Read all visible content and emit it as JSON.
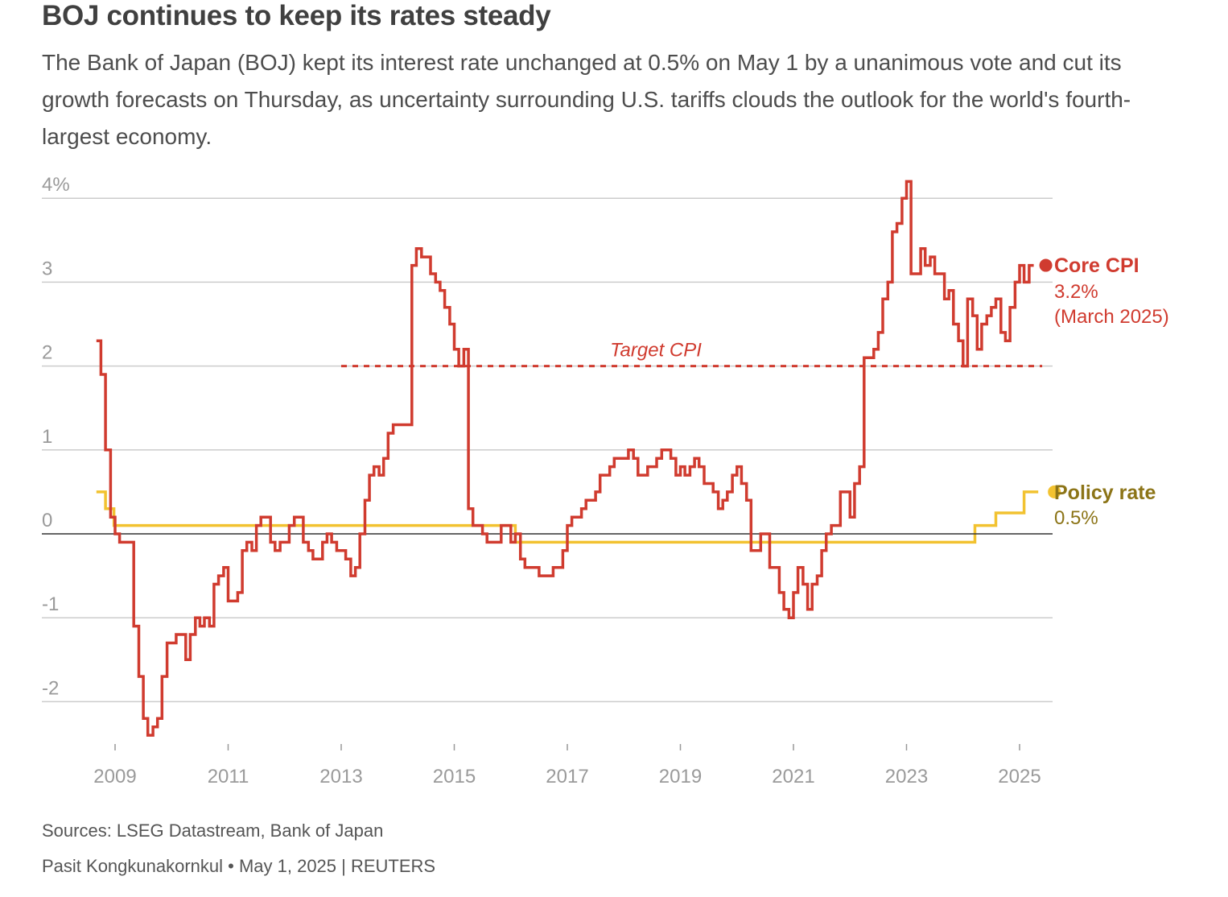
{
  "header": {
    "title": "BOJ continues to keep its rates steady",
    "subtitle": "The Bank of Japan (BOJ) kept its interest rate unchanged at 0.5% on May 1 by a unanimous vote and cut its growth forecasts on Thursday, as uncertainty surrounding U.S. tariffs clouds the outlook for the world's fourth-largest economy."
  },
  "footer": {
    "sources": "Sources: LSEG Datastream, Bank of Japan",
    "byline": "Pasit Kongkunakornkul • May 1, 2025 | REUTERS"
  },
  "colors": {
    "core_cpi": "#d03b2f",
    "policy_rate": "#f2c230",
    "policy_label": "#8c7417",
    "grid": "#cccccc",
    "zero_line": "#333333",
    "axis_text": "#9a9a9a"
  },
  "chart_data": {
    "type": "line",
    "step": true,
    "x_range": [
      2008.0,
      2025.6
    ],
    "ylim": [
      -2.55,
      4.2
    ],
    "y_ticks": [
      {
        "value": 4,
        "label": "4%"
      },
      {
        "value": 3,
        "label": "3"
      },
      {
        "value": 2,
        "label": "2"
      },
      {
        "value": 1,
        "label": "1"
      },
      {
        "value": 0,
        "label": "0"
      },
      {
        "value": -1,
        "label": "-1"
      },
      {
        "value": -2,
        "label": "-2"
      }
    ],
    "x_ticks": [
      {
        "value": 2009,
        "label": "2009"
      },
      {
        "value": 2011,
        "label": "2011"
      },
      {
        "value": 2013,
        "label": "2013"
      },
      {
        "value": 2015,
        "label": "2015"
      },
      {
        "value": 2017,
        "label": "2017"
      },
      {
        "value": 2019,
        "label": "2019"
      },
      {
        "value": 2021,
        "label": "2021"
      },
      {
        "value": 2023,
        "label": "2023"
      },
      {
        "value": 2025,
        "label": "2025"
      }
    ],
    "target_line": {
      "label": "Target CPI",
      "value": 2,
      "x_start": 2013.0,
      "x_end": 2025.4
    },
    "series": [
      {
        "name": "Core CPI",
        "end_value_label": "3.2%",
        "end_date_label": "(March 2025)",
        "points": [
          [
            2008.67,
            2.3
          ],
          [
            2008.75,
            1.9
          ],
          [
            2008.83,
            1.0
          ],
          [
            2008.92,
            0.2
          ],
          [
            2009.0,
            0.0
          ],
          [
            2009.08,
            -0.1
          ],
          [
            2009.17,
            -0.1
          ],
          [
            2009.25,
            -0.1
          ],
          [
            2009.33,
            -1.1
          ],
          [
            2009.42,
            -1.7
          ],
          [
            2009.5,
            -2.2
          ],
          [
            2009.58,
            -2.4
          ],
          [
            2009.67,
            -2.3
          ],
          [
            2009.75,
            -2.2
          ],
          [
            2009.83,
            -1.7
          ],
          [
            2009.92,
            -1.3
          ],
          [
            2010.0,
            -1.3
          ],
          [
            2010.08,
            -1.2
          ],
          [
            2010.17,
            -1.2
          ],
          [
            2010.25,
            -1.5
          ],
          [
            2010.33,
            -1.2
          ],
          [
            2010.42,
            -1.0
          ],
          [
            2010.5,
            -1.1
          ],
          [
            2010.58,
            -1.0
          ],
          [
            2010.67,
            -1.1
          ],
          [
            2010.75,
            -0.6
          ],
          [
            2010.83,
            -0.5
          ],
          [
            2010.92,
            -0.4
          ],
          [
            2011.0,
            -0.8
          ],
          [
            2011.08,
            -0.8
          ],
          [
            2011.17,
            -0.7
          ],
          [
            2011.25,
            -0.2
          ],
          [
            2011.33,
            -0.1
          ],
          [
            2011.42,
            -0.2
          ],
          [
            2011.5,
            0.1
          ],
          [
            2011.58,
            0.2
          ],
          [
            2011.67,
            0.2
          ],
          [
            2011.75,
            -0.1
          ],
          [
            2011.83,
            -0.2
          ],
          [
            2011.92,
            -0.1
          ],
          [
            2012.0,
            -0.1
          ],
          [
            2012.08,
            0.1
          ],
          [
            2012.17,
            0.2
          ],
          [
            2012.25,
            0.2
          ],
          [
            2012.33,
            -0.1
          ],
          [
            2012.42,
            -0.2
          ],
          [
            2012.5,
            -0.3
          ],
          [
            2012.58,
            -0.3
          ],
          [
            2012.67,
            -0.1
          ],
          [
            2012.75,
            0.0
          ],
          [
            2012.83,
            -0.1
          ],
          [
            2012.92,
            -0.2
          ],
          [
            2013.0,
            -0.2
          ],
          [
            2013.08,
            -0.3
          ],
          [
            2013.17,
            -0.5
          ],
          [
            2013.25,
            -0.4
          ],
          [
            2013.33,
            0.0
          ],
          [
            2013.42,
            0.4
          ],
          [
            2013.5,
            0.7
          ],
          [
            2013.58,
            0.8
          ],
          [
            2013.67,
            0.7
          ],
          [
            2013.75,
            0.9
          ],
          [
            2013.83,
            1.2
          ],
          [
            2013.92,
            1.3
          ],
          [
            2014.0,
            1.3
          ],
          [
            2014.08,
            1.3
          ],
          [
            2014.17,
            1.3
          ],
          [
            2014.25,
            3.2
          ],
          [
            2014.33,
            3.4
          ],
          [
            2014.42,
            3.3
          ],
          [
            2014.5,
            3.3
          ],
          [
            2014.58,
            3.1
          ],
          [
            2014.67,
            3.0
          ],
          [
            2014.75,
            2.9
          ],
          [
            2014.83,
            2.7
          ],
          [
            2014.92,
            2.5
          ],
          [
            2015.0,
            2.2
          ],
          [
            2015.08,
            2.0
          ],
          [
            2015.17,
            2.2
          ],
          [
            2015.25,
            0.3
          ],
          [
            2015.33,
            0.1
          ],
          [
            2015.42,
            0.1
          ],
          [
            2015.5,
            0.0
          ],
          [
            2015.58,
            -0.1
          ],
          [
            2015.67,
            -0.1
          ],
          [
            2015.75,
            -0.1
          ],
          [
            2015.83,
            0.1
          ],
          [
            2015.92,
            0.1
          ],
          [
            2016.0,
            -0.1
          ],
          [
            2016.08,
            0.0
          ],
          [
            2016.17,
            -0.3
          ],
          [
            2016.25,
            -0.4
          ],
          [
            2016.33,
            -0.4
          ],
          [
            2016.42,
            -0.4
          ],
          [
            2016.5,
            -0.5
          ],
          [
            2016.58,
            -0.5
          ],
          [
            2016.67,
            -0.5
          ],
          [
            2016.75,
            -0.4
          ],
          [
            2016.83,
            -0.4
          ],
          [
            2016.92,
            -0.2
          ],
          [
            2017.0,
            0.1
          ],
          [
            2017.08,
            0.2
          ],
          [
            2017.17,
            0.2
          ],
          [
            2017.25,
            0.3
          ],
          [
            2017.33,
            0.4
          ],
          [
            2017.42,
            0.4
          ],
          [
            2017.5,
            0.5
          ],
          [
            2017.58,
            0.7
          ],
          [
            2017.67,
            0.7
          ],
          [
            2017.75,
            0.8
          ],
          [
            2017.83,
            0.9
          ],
          [
            2017.92,
            0.9
          ],
          [
            2018.0,
            0.9
          ],
          [
            2018.08,
            1.0
          ],
          [
            2018.17,
            0.9
          ],
          [
            2018.25,
            0.7
          ],
          [
            2018.33,
            0.7
          ],
          [
            2018.42,
            0.8
          ],
          [
            2018.5,
            0.8
          ],
          [
            2018.58,
            0.9
          ],
          [
            2018.67,
            1.0
          ],
          [
            2018.75,
            1.0
          ],
          [
            2018.83,
            0.9
          ],
          [
            2018.92,
            0.7
          ],
          [
            2019.0,
            0.8
          ],
          [
            2019.08,
            0.7
          ],
          [
            2019.17,
            0.8
          ],
          [
            2019.25,
            0.9
          ],
          [
            2019.33,
            0.8
          ],
          [
            2019.42,
            0.6
          ],
          [
            2019.5,
            0.6
          ],
          [
            2019.58,
            0.5
          ],
          [
            2019.67,
            0.3
          ],
          [
            2019.75,
            0.4
          ],
          [
            2019.83,
            0.5
          ],
          [
            2019.92,
            0.7
          ],
          [
            2020.0,
            0.8
          ],
          [
            2020.08,
            0.6
          ],
          [
            2020.17,
            0.4
          ],
          [
            2020.25,
            -0.2
          ],
          [
            2020.33,
            -0.2
          ],
          [
            2020.42,
            0.0
          ],
          [
            2020.5,
            0.0
          ],
          [
            2020.58,
            -0.4
          ],
          [
            2020.67,
            -0.4
          ],
          [
            2020.75,
            -0.7
          ],
          [
            2020.83,
            -0.9
          ],
          [
            2020.92,
            -1.0
          ],
          [
            2021.0,
            -0.7
          ],
          [
            2021.08,
            -0.4
          ],
          [
            2021.17,
            -0.6
          ],
          [
            2021.25,
            -0.9
          ],
          [
            2021.33,
            -0.6
          ],
          [
            2021.42,
            -0.5
          ],
          [
            2021.5,
            -0.2
          ],
          [
            2021.58,
            0.0
          ],
          [
            2021.67,
            0.1
          ],
          [
            2021.75,
            0.1
          ],
          [
            2021.83,
            0.5
          ],
          [
            2021.92,
            0.5
          ],
          [
            2022.0,
            0.2
          ],
          [
            2022.08,
            0.6
          ],
          [
            2022.17,
            0.8
          ],
          [
            2022.25,
            2.1
          ],
          [
            2022.33,
            2.1
          ],
          [
            2022.42,
            2.2
          ],
          [
            2022.5,
            2.4
          ],
          [
            2022.58,
            2.8
          ],
          [
            2022.67,
            3.0
          ],
          [
            2022.75,
            3.6
          ],
          [
            2022.83,
            3.7
          ],
          [
            2022.92,
            4.0
          ],
          [
            2023.0,
            4.2
          ],
          [
            2023.08,
            3.1
          ],
          [
            2023.17,
            3.1
          ],
          [
            2023.25,
            3.4
          ],
          [
            2023.33,
            3.2
          ],
          [
            2023.42,
            3.3
          ],
          [
            2023.5,
            3.1
          ],
          [
            2023.58,
            3.1
          ],
          [
            2023.67,
            2.8
          ],
          [
            2023.75,
            2.9
          ],
          [
            2023.83,
            2.5
          ],
          [
            2023.92,
            2.3
          ],
          [
            2024.0,
            2.0
          ],
          [
            2024.08,
            2.8
          ],
          [
            2024.17,
            2.6
          ],
          [
            2024.25,
            2.2
          ],
          [
            2024.33,
            2.5
          ],
          [
            2024.42,
            2.6
          ],
          [
            2024.5,
            2.7
          ],
          [
            2024.58,
            2.8
          ],
          [
            2024.67,
            2.4
          ],
          [
            2024.75,
            2.3
          ],
          [
            2024.83,
            2.7
          ],
          [
            2024.92,
            3.0
          ],
          [
            2025.0,
            3.2
          ],
          [
            2025.08,
            3.0
          ],
          [
            2025.17,
            3.2
          ],
          [
            2025.25,
            3.2
          ]
        ]
      },
      {
        "name": "Policy rate",
        "end_value_label": "0.5%",
        "points": [
          [
            2008.67,
            0.5
          ],
          [
            2008.83,
            0.3
          ],
          [
            2008.98,
            0.1
          ],
          [
            2016.08,
            -0.1
          ],
          [
            2024.21,
            0.1
          ],
          [
            2024.58,
            0.25
          ],
          [
            2025.08,
            0.5
          ],
          [
            2025.33,
            0.5
          ]
        ]
      }
    ]
  }
}
